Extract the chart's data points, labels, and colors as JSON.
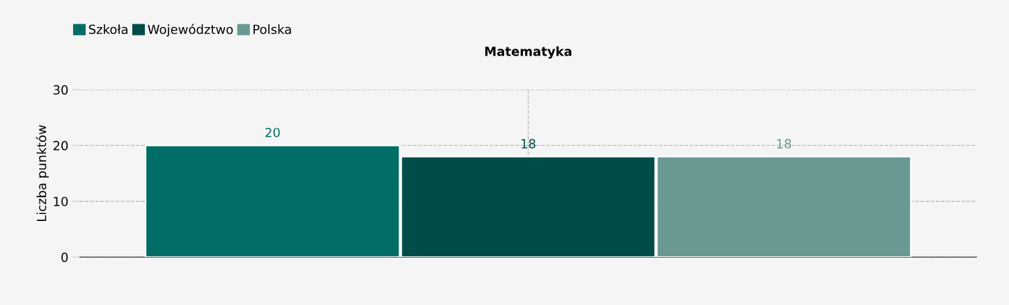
{
  "chart_data": {
    "type": "bar",
    "title": "Matematyka",
    "ylabel": "Liczba punktów",
    "categories": [
      null
    ],
    "series": [
      {
        "name": "Szkoła",
        "color": "#006e66",
        "values": [
          20
        ]
      },
      {
        "name": "Województwo",
        "color": "#004d48",
        "values": [
          18
        ]
      },
      {
        "name": "Polska",
        "color": "#6a9994",
        "values": [
          18
        ]
      }
    ],
    "ylim": [
      0,
      30
    ],
    "yticks": [
      0,
      10,
      20,
      30
    ],
    "grid": true,
    "legend": "top left",
    "data_labels": true
  }
}
